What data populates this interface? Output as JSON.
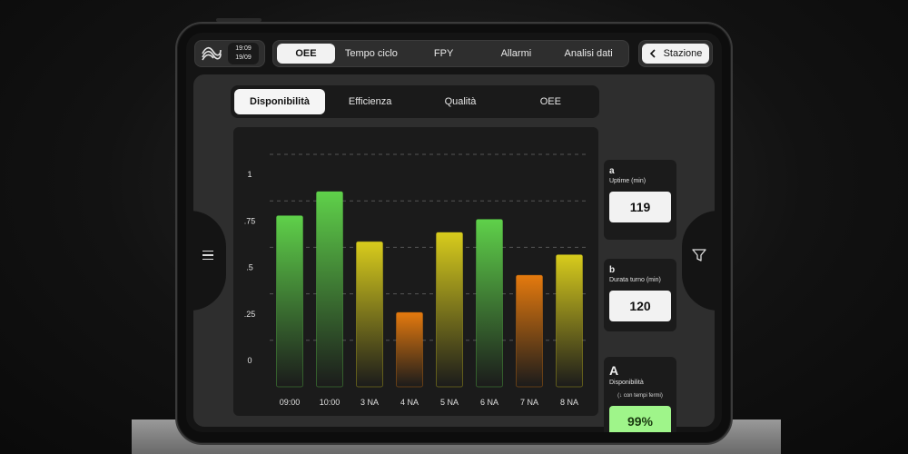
{
  "clock": {
    "time": "19:09",
    "date": "19/09"
  },
  "topnav": {
    "tabs": [
      {
        "label": "OEE",
        "active": true
      },
      {
        "label": "Tempo ciclo",
        "active": false
      },
      {
        "label": "FPY",
        "active": false
      },
      {
        "label": "Allarmi",
        "active": false
      },
      {
        "label": "Analisi dati",
        "active": false
      }
    ]
  },
  "station": {
    "label": "Stazione"
  },
  "subnav": {
    "tabs": [
      {
        "label": "Disponibilità",
        "active": true
      },
      {
        "label": "Efficienza",
        "active": false
      },
      {
        "label": "Qualità",
        "active": false
      },
      {
        "label": "OEE",
        "active": false
      }
    ]
  },
  "cards": {
    "a": {
      "letter": "a",
      "label": "Uptime (min)",
      "value": "119"
    },
    "b": {
      "letter": "b",
      "label": "Durata turno (min)",
      "value": "120"
    },
    "A": {
      "letter": "A",
      "label": "Disponibilità",
      "hint": "(↓ con tempi fermi)",
      "value": "99%"
    }
  },
  "colors": {
    "green": "#5fd14a",
    "yellow": "#d8cc1c",
    "orange": "#e57a0e",
    "accent_green": "#9ff58a"
  },
  "chart_data": {
    "type": "bar",
    "categories": [
      "09:00",
      "10:00",
      "3 NA",
      "4 NA",
      "5 NA",
      "6 NA",
      "7 NA",
      "8 NA"
    ],
    "values": [
      0.92,
      1.05,
      0.78,
      0.4,
      0.83,
      0.9,
      0.6,
      0.71
    ],
    "bar_colors": [
      "green",
      "green",
      "yellow",
      "orange",
      "yellow",
      "green",
      "orange",
      "yellow"
    ],
    "ytick_labels": [
      "0",
      ".25",
      ".5",
      ".75",
      "1"
    ],
    "ylim": [
      0,
      1.25
    ],
    "grid": true
  }
}
